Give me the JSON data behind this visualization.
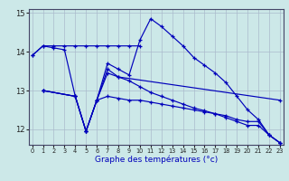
{
  "xlabel": "Graphe des températures (°c)",
  "background_color": "#cce8e8",
  "grid_color": "#aabbcc",
  "line_color": "#0000bb",
  "ylim": [
    11.6,
    15.1
  ],
  "xlim": [
    -0.3,
    23.3
  ],
  "yticks": [
    12,
    13,
    14,
    15
  ],
  "xticks": [
    0,
    1,
    2,
    3,
    4,
    5,
    6,
    7,
    8,
    9,
    10,
    11,
    12,
    13,
    14,
    15,
    16,
    17,
    18,
    19,
    20,
    21,
    22,
    23
  ],
  "series": [
    {
      "x": [
        0,
        1,
        2,
        3,
        4,
        5,
        6,
        7,
        8,
        9,
        10
      ],
      "y": [
        13.9,
        14.15,
        14.15,
        14.15,
        14.15,
        14.15,
        14.15,
        14.15,
        14.15,
        14.15,
        14.15
      ]
    },
    {
      "x": [
        0,
        1,
        2,
        3,
        4,
        5,
        6,
        7,
        8,
        9,
        10,
        11,
        12,
        13,
        14,
        15,
        16,
        17,
        18,
        19,
        20,
        21,
        22,
        23
      ],
      "y": [
        13.9,
        14.15,
        14.1,
        14.05,
        12.85,
        11.95,
        12.75,
        13.7,
        13.55,
        13.4,
        14.3,
        14.85,
        14.65,
        14.4,
        14.15,
        13.85,
        13.65,
        13.45,
        13.2,
        12.85,
        12.5,
        12.25,
        11.85,
        11.65
      ]
    },
    {
      "x": [
        1,
        4,
        5,
        6,
        7,
        8,
        9,
        10,
        11,
        12,
        13,
        14,
        15,
        16,
        17,
        18,
        19,
        20,
        21,
        22,
        23
      ],
      "y": [
        13.0,
        12.85,
        11.95,
        12.75,
        12.85,
        12.8,
        12.75,
        12.75,
        12.7,
        12.65,
        12.6,
        12.55,
        12.5,
        12.45,
        12.4,
        12.35,
        12.25,
        12.2,
        12.2,
        11.85,
        11.65
      ]
    },
    {
      "x": [
        1,
        4,
        5,
        6,
        7,
        8,
        23
      ],
      "y": [
        13.0,
        12.85,
        11.95,
        12.75,
        13.55,
        13.35,
        12.75
      ]
    },
    {
      "x": [
        1,
        4,
        5,
        6,
        7,
        8,
        9,
        10,
        11,
        12,
        13,
        14,
        15,
        16,
        17,
        18,
        19,
        20,
        21,
        22,
        23
      ],
      "y": [
        13.0,
        12.85,
        11.95,
        12.75,
        13.45,
        13.35,
        13.25,
        13.1,
        12.95,
        12.85,
        12.75,
        12.65,
        12.55,
        12.48,
        12.4,
        12.3,
        12.2,
        12.1,
        12.1,
        11.85,
        11.65
      ]
    }
  ]
}
